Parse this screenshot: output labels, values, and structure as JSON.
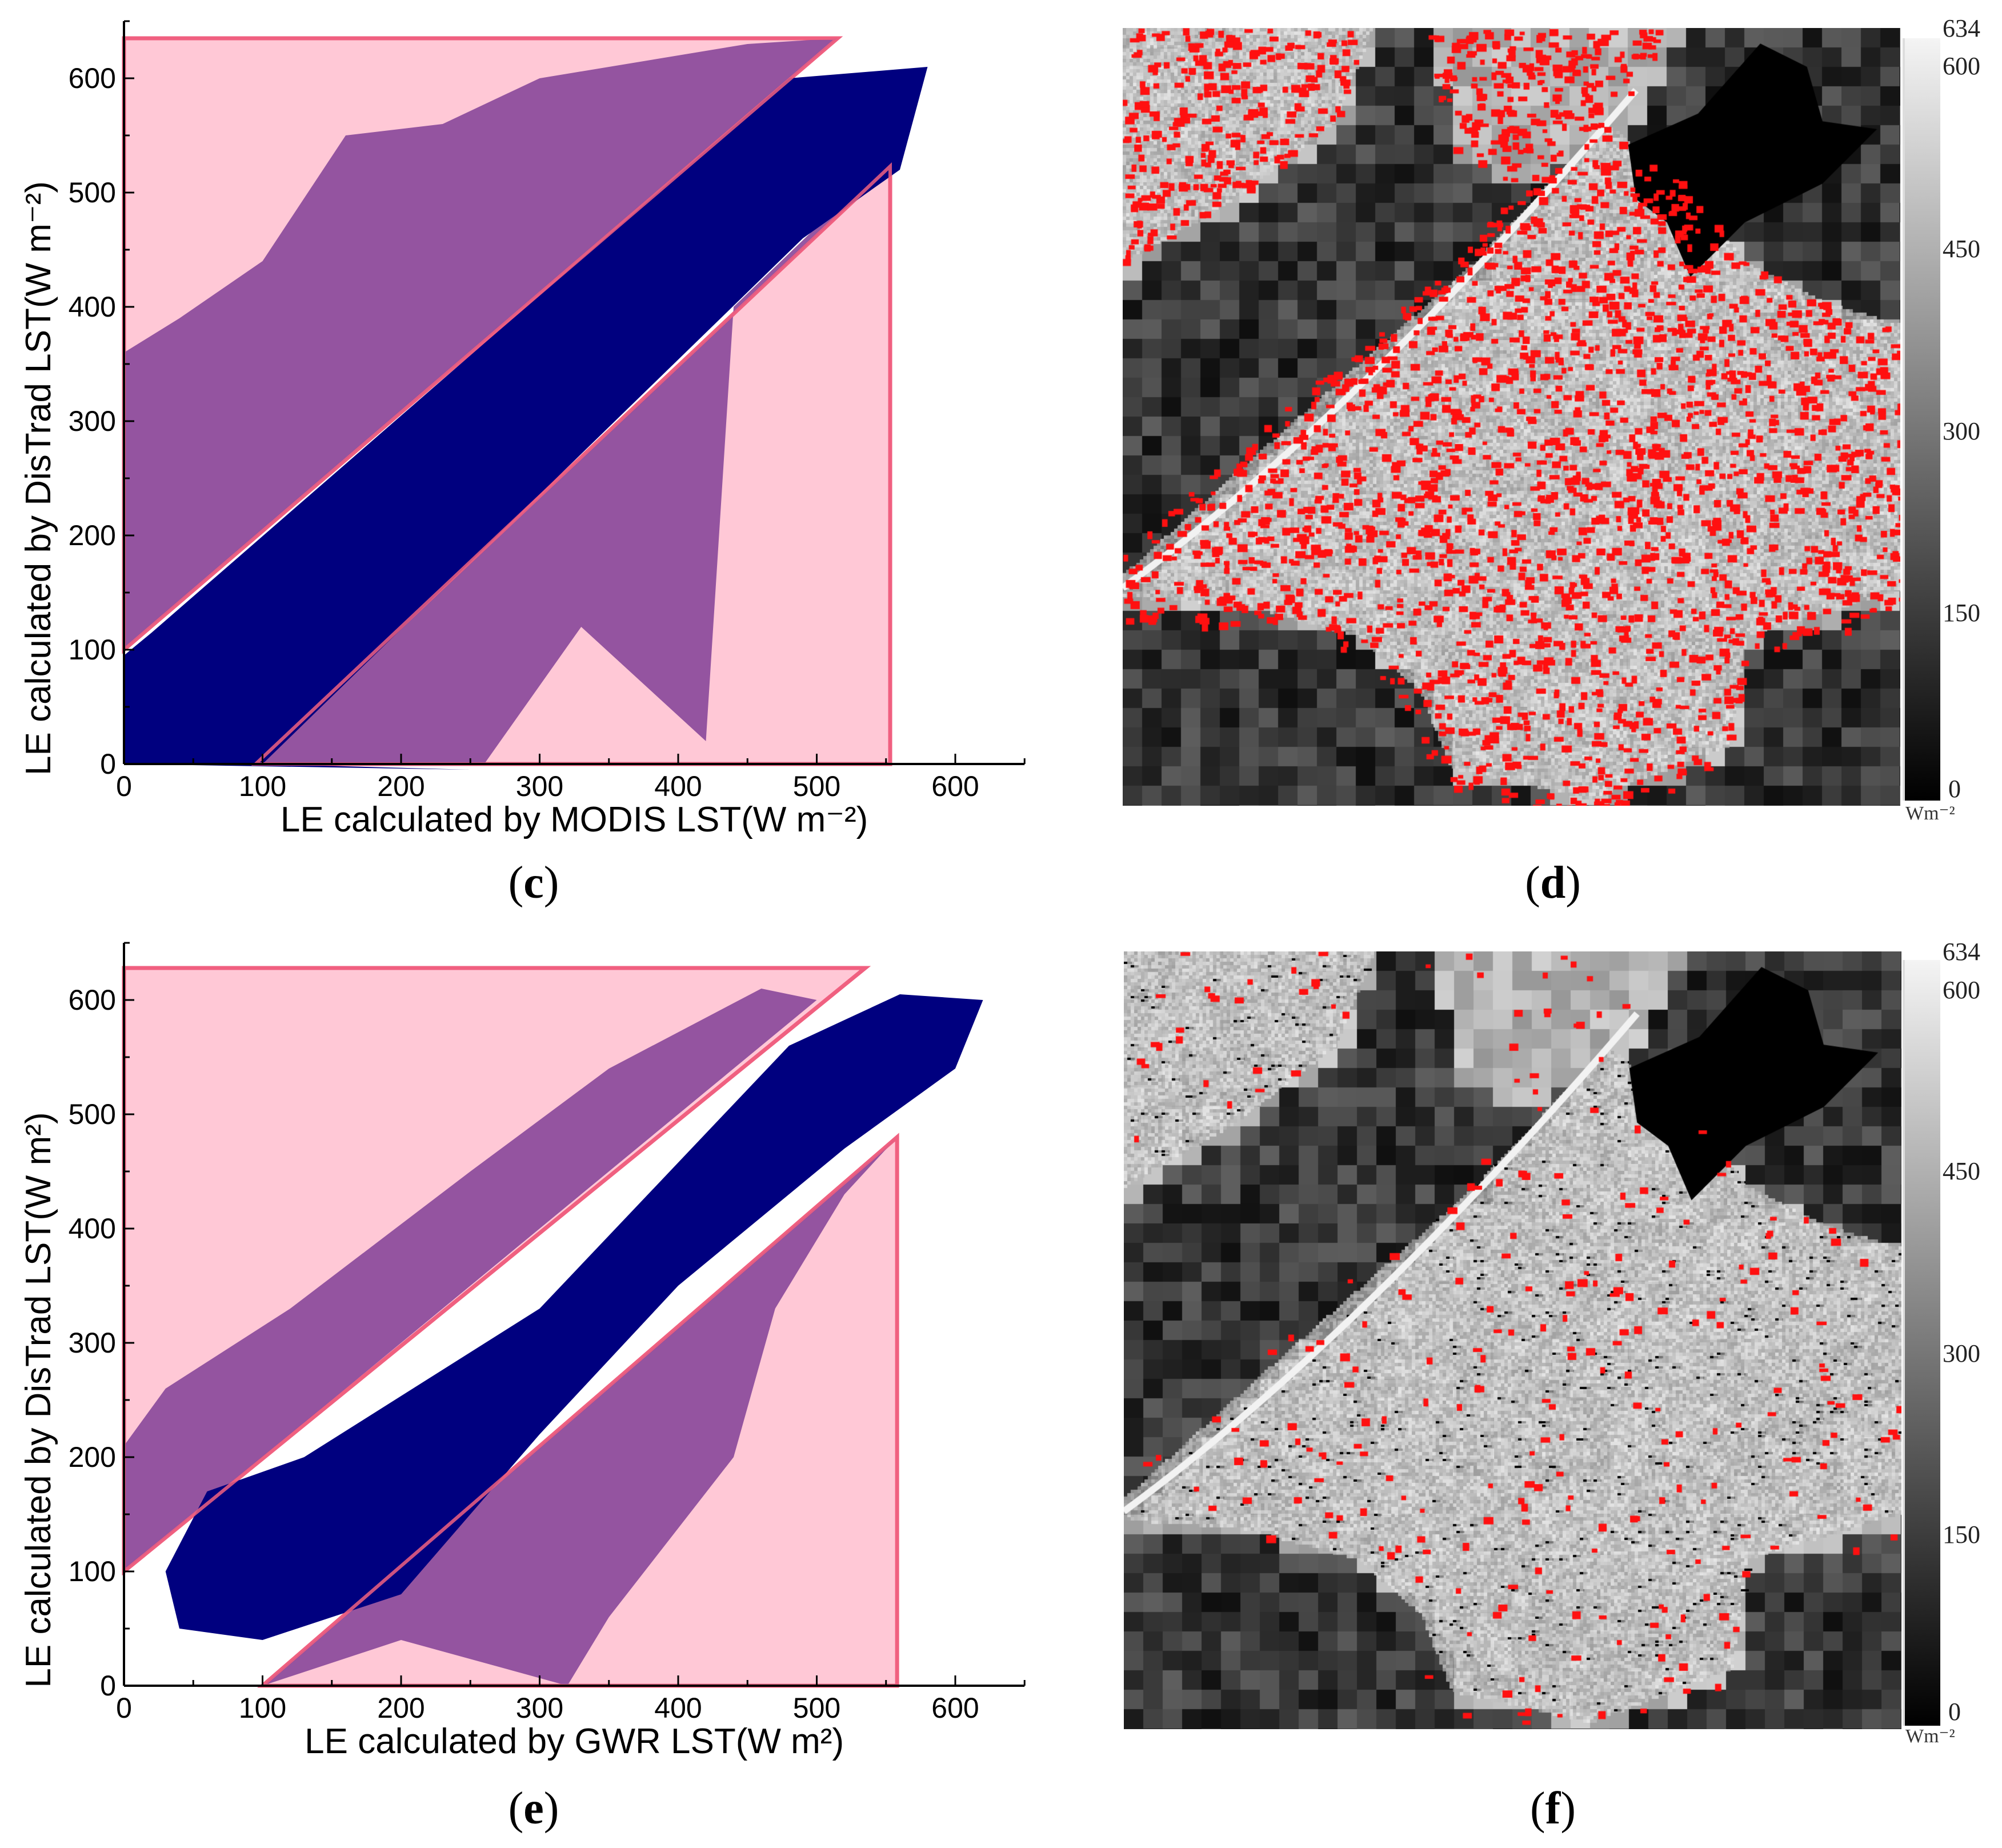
{
  "colors": {
    "core_points": "#00007f",
    "outlier_points": "#8b4a9b",
    "region_fill": "#ffc8d6",
    "region_edge": "#f06080"
  },
  "chart_data": [
    {
      "type": "scatter",
      "panel": "c",
      "xlabel": "LE calculated by MODIS LST(W m⁻²)",
      "ylabel": "LE calculated by DisTrad LST(W m⁻²)",
      "xlim": [
        0,
        650
      ],
      "ylim": [
        0,
        650
      ],
      "xticks": [
        0,
        100,
        200,
        300,
        400,
        500,
        600
      ],
      "yticks": [
        0,
        100,
        200,
        300,
        400,
        500,
        600
      ],
      "grid": false,
      "shaded_regions": [
        [
          [
            0,
            100
          ],
          [
            0,
            635
          ],
          [
            515,
            635
          ]
        ],
        [
          [
            95,
            0
          ],
          [
            553,
            523
          ],
          [
            553,
            0
          ]
        ]
      ],
      "point_clouds": [
        {
          "color": "outlier_points",
          "outline": [
            [
              0,
              100
            ],
            [
              0,
              360
            ],
            [
              40,
              390
            ],
            [
              100,
              440
            ],
            [
              160,
              550
            ],
            [
              230,
              560
            ],
            [
              300,
              600
            ],
            [
              450,
              630
            ],
            [
              515,
              635
            ]
          ]
        },
        {
          "color": "outlier_points",
          "outline": [
            [
              95,
              0
            ],
            [
              260,
              0
            ],
            [
              330,
              120
            ],
            [
              420,
              20
            ],
            [
              440,
              400
            ],
            [
              500,
              470
            ],
            [
              553,
              523
            ]
          ]
        },
        {
          "color": "core_points",
          "outline": [
            [
              0,
              0
            ],
            [
              0,
              95
            ],
            [
              20,
              115
            ],
            [
              480,
              600
            ],
            [
              580,
              610
            ],
            [
              560,
              520
            ],
            [
              490,
              460
            ],
            [
              100,
              0
            ],
            [
              250,
              -5
            ]
          ]
        }
      ]
    },
    {
      "type": "scatter",
      "panel": "e",
      "xlabel": "LE calculated by GWR LST(W m²)",
      "ylabel": "LE calculated by DisTrad LST(W m²)",
      "xlim": [
        0,
        650
      ],
      "ylim": [
        0,
        650
      ],
      "xticks": [
        0,
        100,
        200,
        300,
        400,
        500,
        600
      ],
      "yticks": [
        0,
        100,
        200,
        300,
        400,
        500,
        600
      ],
      "grid": false,
      "shaded_regions": [
        [
          [
            0,
            100
          ],
          [
            0,
            628
          ],
          [
            535,
            628
          ]
        ],
        [
          [
            100,
            0
          ],
          [
            558,
            480
          ],
          [
            558,
            0
          ]
        ]
      ],
      "point_clouds": [
        {
          "color": "outlier_points",
          "outline": [
            [
              0,
              100
            ],
            [
              0,
              210
            ],
            [
              30,
              260
            ],
            [
              120,
              330
            ],
            [
              250,
              450
            ],
            [
              350,
              540
            ],
            [
              460,
              610
            ],
            [
              500,
              600
            ]
          ]
        },
        {
          "color": "outlier_points",
          "outline": [
            [
              100,
              0
            ],
            [
              200,
              40
            ],
            [
              320,
              0
            ],
            [
              350,
              60
            ],
            [
              440,
              200
            ],
            [
              470,
              330
            ],
            [
              520,
              430
            ],
            [
              558,
              480
            ]
          ]
        },
        {
          "color": "core_points",
          "outline": [
            [
              30,
              100
            ],
            [
              60,
              170
            ],
            [
              130,
              200
            ],
            [
              300,
              330
            ],
            [
              480,
              560
            ],
            [
              560,
              605
            ],
            [
              620,
              600
            ],
            [
              600,
              540
            ],
            [
              520,
              470
            ],
            [
              400,
              350
            ],
            [
              300,
              220
            ],
            [
              200,
              80
            ],
            [
              100,
              40
            ],
            [
              40,
              50
            ]
          ]
        }
      ]
    }
  ],
  "maps": [
    {
      "panel": "d",
      "colorbar": {
        "ticks": [
          "634",
          "600",
          "450",
          "300",
          "150",
          "0"
        ],
        "unit": "Wm⁻²"
      },
      "overlay_density": "high"
    },
    {
      "panel": "f",
      "colorbar": {
        "ticks": [
          "634",
          "600",
          "450",
          "300",
          "150",
          "0"
        ],
        "unit": "Wm⁻²"
      },
      "overlay_density": "low"
    }
  ],
  "captions": {
    "c": "c",
    "d": "d",
    "e": "e",
    "f": "f"
  }
}
